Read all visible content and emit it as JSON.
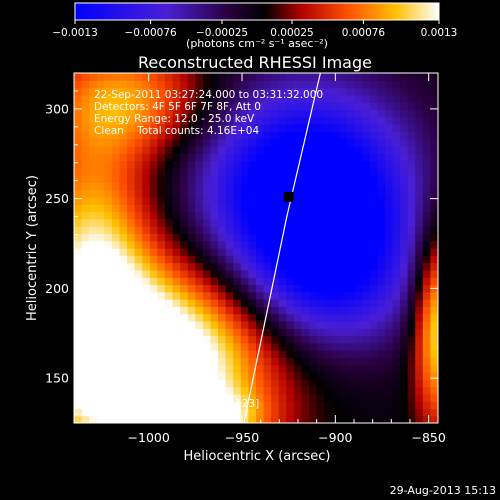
{
  "chart_data": {
    "type": "heatmap",
    "title": "Reconstructed RHESSI Image",
    "xlabel": "Heliocentric X (arcsec)",
    "ylabel": "Heliocentric Y (arcsec)",
    "xlim": [
      -1040,
      -845
    ],
    "ylim": [
      125,
      320
    ],
    "x_ticks": [
      -1000,
      -950,
      -900,
      -850
    ],
    "x_tick_labels": [
      "−1000",
      "−950",
      "−900",
      "−850"
    ],
    "y_ticks": [
      150,
      200,
      250,
      300
    ],
    "y_tick_labels": [
      "150",
      "200",
      "250",
      "300"
    ],
    "colorbar": {
      "range": [
        -0.0013,
        0.0013
      ],
      "ticks": [
        -0.0013,
        -0.00076,
        -0.00025,
        0.00025,
        0.00076,
        0.0013
      ],
      "tick_labels": [
        "−0.0013",
        "−0.00076",
        "−0.00025",
        "0.00025",
        "0.00076",
        "0.0013"
      ],
      "units_label": "(photons cm⁻² s⁻¹ asec⁻²)"
    },
    "annotations": [
      "22-Sep-2011 03:27:24.000 to 03:31:32.000",
      "Detectors: 4F 5F 6F 7F 8F, Att 0",
      "Energy Range: 12.0 - 25.0 keV",
      "Clean    Total counts: 4.16E+04"
    ],
    "peak_label": "Position of Peak = [−1008,123]",
    "peak_marker": {
      "x": -925,
      "y": 251
    },
    "limb_curve": [
      {
        "x": -949,
        "y": 125
      },
      {
        "x": -942,
        "y": 160
      },
      {
        "x": -934,
        "y": 200
      },
      {
        "x": -926,
        "y": 240
      },
      {
        "x": -917,
        "y": 280
      },
      {
        "x": -908,
        "y": 320
      }
    ],
    "components": [
      {
        "x": -995,
        "y": 158,
        "sx": 42,
        "sy": 38,
        "amp": 0.0018
      },
      {
        "x": -1030,
        "y": 210,
        "sx": 22,
        "sy": 55,
        "amp": 0.0011
      },
      {
        "x": -1010,
        "y": 305,
        "sx": 30,
        "sy": 22,
        "amp": 0.0008
      },
      {
        "x": -845,
        "y": 180,
        "sx": 9,
        "sy": 38,
        "amp": 0.0012
      },
      {
        "x": -965,
        "y": 128,
        "sx": 18,
        "sy": 10,
        "amp": 0.0007
      },
      {
        "x": -915,
        "y": 252,
        "sx": 38,
        "sy": 40,
        "amp": -0.0019
      },
      {
        "x": -900,
        "y": 205,
        "sx": 30,
        "sy": 30,
        "amp": -0.0007
      }
    ]
  },
  "footer": {
    "timestamp": "29-Aug-2013 15:13"
  }
}
